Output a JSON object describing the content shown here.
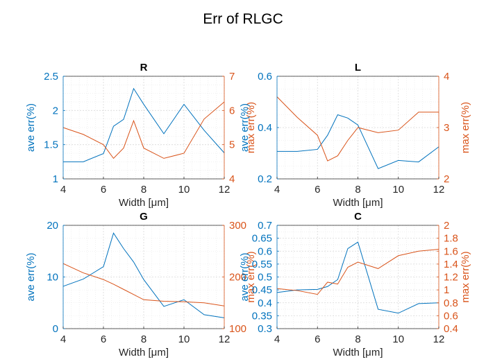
{
  "figure": {
    "title": "Err of RLGC"
  },
  "colors": {
    "left": "#0072BD",
    "right": "#D95319",
    "axis": "#262626",
    "grid": "#d8d8d8"
  },
  "chart_data": [
    {
      "type": "line",
      "title": "R",
      "xlabel": "Width [μm]",
      "ylabel_left": "ave err(%)",
      "ylabel_right": "max err(%)",
      "xlim": [
        4,
        12
      ],
      "ylim_left": [
        1,
        2.5
      ],
      "ylim_right": [
        4,
        7
      ],
      "xticks": [
        4,
        6,
        8,
        10,
        12
      ],
      "yticks_left": [
        "1",
        "1.5",
        "2",
        "2.5"
      ],
      "yticks_right": [
        "4",
        "5",
        "6",
        "7"
      ],
      "grid": true,
      "minor_grid": true,
      "series": [
        {
          "axis": "left",
          "x": [
            4,
            5,
            6,
            6.5,
            7,
            7.5,
            8,
            9,
            10,
            11,
            12
          ],
          "y": [
            1.25,
            1.25,
            1.37,
            1.77,
            1.87,
            2.32,
            2.09,
            1.66,
            2.09,
            1.71,
            1.38
          ]
        },
        {
          "axis": "right",
          "x": [
            4,
            5,
            6,
            6.5,
            7,
            7.5,
            8,
            9,
            10,
            11,
            12
          ],
          "y": [
            5.5,
            5.3,
            5.0,
            4.6,
            4.9,
            5.7,
            4.9,
            4.6,
            4.75,
            5.75,
            6.25
          ]
        }
      ]
    },
    {
      "type": "line",
      "title": "L",
      "xlabel": "Width [μm]",
      "ylabel_left": "ave err(%)",
      "ylabel_right": "max err(%)",
      "xlim": [
        4,
        12
      ],
      "ylim_left": [
        0.2,
        0.6
      ],
      "ylim_right": [
        2,
        4
      ],
      "xticks": [
        4,
        6,
        8,
        10,
        12
      ],
      "yticks_left": [
        "0.2",
        "0.4",
        "0.6"
      ],
      "yticks_right": [
        "2",
        "3",
        "4"
      ],
      "grid": true,
      "minor_grid": true,
      "series": [
        {
          "axis": "left",
          "x": [
            4,
            5,
            6,
            6.5,
            7,
            7.5,
            8,
            9,
            10,
            11,
            12
          ],
          "y": [
            0.307,
            0.307,
            0.315,
            0.37,
            0.45,
            0.437,
            0.41,
            0.24,
            0.272,
            0.266,
            0.325
          ]
        },
        {
          "axis": "right",
          "x": [
            4,
            5,
            6,
            6.5,
            7,
            7.5,
            8,
            9,
            10,
            11,
            12
          ],
          "y": [
            3.6,
            3.2,
            2.85,
            2.35,
            2.45,
            2.75,
            3.0,
            2.9,
            2.95,
            3.3,
            3.3
          ]
        }
      ]
    },
    {
      "type": "line",
      "title": "G",
      "xlabel": "Width [μm]",
      "ylabel_left": "ave err(%)",
      "ylabel_right": "max err(%)",
      "xlim": [
        4,
        12
      ],
      "ylim_left": [
        0,
        20
      ],
      "ylim_right": [
        100,
        300
      ],
      "xticks": [
        4,
        6,
        8,
        10,
        12
      ],
      "yticks_left": [
        "0",
        "10",
        "20"
      ],
      "yticks_right": [
        "100",
        "200",
        "300"
      ],
      "grid": true,
      "minor_grid": true,
      "series": [
        {
          "axis": "left",
          "x": [
            4,
            5,
            6,
            6.5,
            7,
            7.5,
            8,
            9,
            10,
            11,
            12
          ],
          "y": [
            8.2,
            9.6,
            12.0,
            18.5,
            15.5,
            12.9,
            9.5,
            4.3,
            5.6,
            2.7,
            2.1
          ]
        },
        {
          "axis": "right",
          "x": [
            4,
            5,
            6,
            6.5,
            7,
            7.5,
            8,
            9,
            10,
            11,
            12
          ],
          "y": [
            226,
            208,
            195,
            186,
            176,
            166,
            156,
            153,
            152,
            150,
            144
          ]
        }
      ]
    },
    {
      "type": "line",
      "title": "C",
      "xlabel": "Width [μm]",
      "ylabel_left": "ave err(%)",
      "ylabel_right": "max err(%)",
      "xlim": [
        4,
        12
      ],
      "ylim_left": [
        0.3,
        0.7
      ],
      "ylim_right": [
        0.4,
        2
      ],
      "xticks": [
        4,
        6,
        8,
        10,
        12
      ],
      "yticks_left": [
        "0.3",
        "0.35",
        "0.4",
        "0.45",
        "0.5",
        "0.55",
        "0.6",
        "0.65",
        "0.7"
      ],
      "yticks_right": [
        "0.4",
        "0.6",
        "0.8",
        "1",
        "1.2",
        "1.4",
        "1.6",
        "1.8",
        "2"
      ],
      "grid": true,
      "minor_grid": true,
      "series": [
        {
          "axis": "left",
          "x": [
            4,
            5,
            6,
            6.5,
            7,
            7.5,
            8,
            9,
            10,
            11,
            12
          ],
          "y": [
            0.44,
            0.45,
            0.452,
            0.463,
            0.49,
            0.61,
            0.635,
            0.375,
            0.36,
            0.397,
            0.4
          ]
        },
        {
          "axis": "right",
          "x": [
            4,
            5,
            6,
            6.5,
            7,
            7.5,
            8,
            9,
            10,
            11,
            12
          ],
          "y": [
            1.02,
            0.99,
            0.93,
            1.12,
            1.09,
            1.35,
            1.43,
            1.33,
            1.53,
            1.6,
            1.63
          ]
        }
      ]
    }
  ]
}
